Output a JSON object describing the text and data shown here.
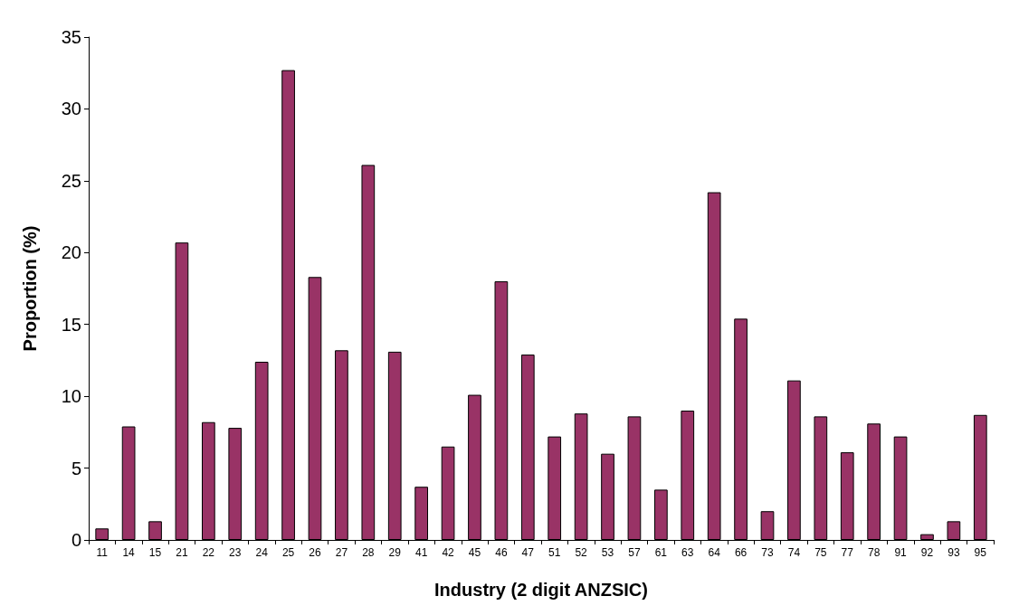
{
  "chart_data": {
    "type": "bar",
    "xlabel": "Industry (2 digit ANZSIC)",
    "ylabel": "Proportion (%)",
    "categories": [
      "11",
      "14",
      "15",
      "21",
      "22",
      "23",
      "24",
      "25",
      "26",
      "27",
      "28",
      "29",
      "41",
      "42",
      "45",
      "46",
      "47",
      "51",
      "52",
      "53",
      "57",
      "61",
      "63",
      "64",
      "66",
      "73",
      "74",
      "75",
      "77",
      "78",
      "91",
      "92",
      "93",
      "95"
    ],
    "values": [
      0.8,
      7.9,
      1.3,
      20.7,
      8.2,
      7.8,
      12.4,
      32.7,
      18.3,
      13.2,
      26.1,
      13.1,
      3.7,
      6.5,
      10.1,
      18.0,
      12.9,
      7.2,
      8.8,
      6.0,
      8.6,
      3.5,
      9.0,
      24.2,
      15.4,
      2.0,
      11.1,
      8.6,
      6.1,
      8.1,
      7.2,
      0.4,
      1.3,
      8.7
    ],
    "color": "#993366",
    "ylim": [
      0,
      35
    ],
    "yticks": [
      0,
      5,
      10,
      15,
      20,
      25,
      30,
      35
    ],
    "grid": false
  }
}
